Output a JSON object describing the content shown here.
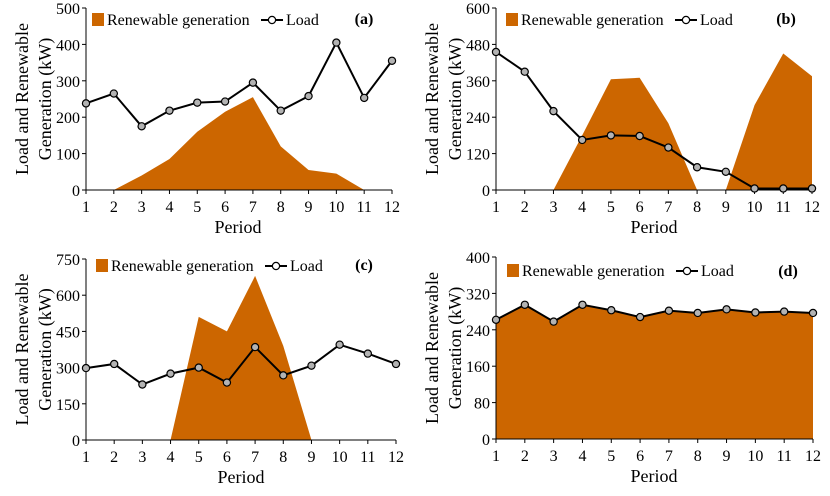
{
  "figure": {
    "legend_renewable": "Renewable generation",
    "legend_load": "Load"
  },
  "colors": {
    "renewable_fill": "#cc6600",
    "load_line": "#000000",
    "load_marker_fill": "#b3b3b3",
    "axis": "#000000"
  },
  "chart_data": [
    {
      "type": "area",
      "panel_label": "(a)",
      "title": "",
      "xlabel": "Period",
      "ylabel": "Load and Renewable Generation (kW)",
      "ylabel_lines": [
        "Load and Renewable",
        "Generation (kW)"
      ],
      "x": [
        1,
        2,
        3,
        4,
        5,
        6,
        7,
        8,
        9,
        10,
        11,
        12
      ],
      "xlim": [
        1,
        12
      ],
      "ylim": [
        0,
        500
      ],
      "yticks": [
        0,
        100,
        200,
        300,
        400,
        500
      ],
      "grid": false,
      "legend": "top",
      "series": [
        {
          "name": "Renewable generation",
          "kind": "area",
          "values": [
            0,
            0,
            40,
            85,
            160,
            215,
            255,
            120,
            55,
            45,
            0,
            0
          ]
        },
        {
          "name": "Load",
          "kind": "line",
          "values": [
            238,
            265,
            175,
            218,
            240,
            243,
            295,
            218,
            258,
            405,
            253,
            355
          ]
        }
      ]
    },
    {
      "type": "area",
      "panel_label": "(b)",
      "title": "",
      "xlabel": "Period",
      "ylabel": "Load and Renewable Generation (kW)",
      "ylabel_lines": [
        "Load and Renewable",
        "Generation (kW)"
      ],
      "x": [
        1,
        2,
        3,
        4,
        5,
        6,
        7,
        8,
        9,
        10,
        11,
        12
      ],
      "xlim": [
        1,
        12
      ],
      "ylim": [
        0,
        600
      ],
      "yticks": [
        0,
        120,
        240,
        360,
        480,
        600
      ],
      "grid": false,
      "legend": "top",
      "series": [
        {
          "name": "Renewable generation",
          "kind": "area",
          "values": [
            0,
            0,
            0,
            180,
            365,
            370,
            220,
            0,
            0,
            280,
            450,
            375
          ]
        },
        {
          "name": "Load",
          "kind": "line",
          "values": [
            455,
            390,
            260,
            165,
            180,
            178,
            140,
            75,
            60,
            5,
            5,
            5
          ]
        }
      ]
    },
    {
      "type": "area",
      "panel_label": "(c)",
      "title": "",
      "xlabel": "Period",
      "ylabel": "Load and Renewable Generation (kW)",
      "ylabel_lines": [
        "Load and Renewable",
        "Generation (kW)"
      ],
      "x": [
        1,
        2,
        3,
        4,
        5,
        6,
        7,
        8,
        9,
        10,
        11,
        12
      ],
      "xlim": [
        1,
        12
      ],
      "ylim": [
        0,
        750
      ],
      "yticks": [
        0,
        150,
        300,
        450,
        600,
        750
      ],
      "grid": false,
      "legend": "top",
      "series": [
        {
          "name": "Renewable generation",
          "kind": "area",
          "values": [
            0,
            0,
            0,
            0,
            510,
            450,
            680,
            390,
            0,
            0,
            0,
            0
          ]
        },
        {
          "name": "Load",
          "kind": "line",
          "values": [
            298,
            315,
            230,
            275,
            300,
            238,
            385,
            268,
            308,
            395,
            358,
            315
          ]
        }
      ]
    },
    {
      "type": "area",
      "panel_label": "(d)",
      "title": "",
      "xlabel": "Period",
      "ylabel": "Load and Renewable Generation (kW)",
      "ylabel_lines": [
        "Load and Renewable",
        "Generation (kW)"
      ],
      "x": [
        1,
        2,
        3,
        4,
        5,
        6,
        7,
        8,
        9,
        10,
        11,
        12
      ],
      "xlim": [
        1,
        12
      ],
      "ylim": [
        0,
        400
      ],
      "yticks": [
        0,
        80,
        160,
        240,
        320,
        400
      ],
      "grid": false,
      "legend": "top",
      "series": [
        {
          "name": "Renewable generation",
          "kind": "area",
          "values": [
            262,
            295,
            258,
            295,
            283,
            268,
            282,
            277,
            285,
            278,
            280,
            277
          ]
        },
        {
          "name": "Load",
          "kind": "line",
          "values": [
            262,
            295,
            258,
            295,
            283,
            268,
            282,
            277,
            285,
            278,
            280,
            277
          ]
        }
      ]
    }
  ]
}
